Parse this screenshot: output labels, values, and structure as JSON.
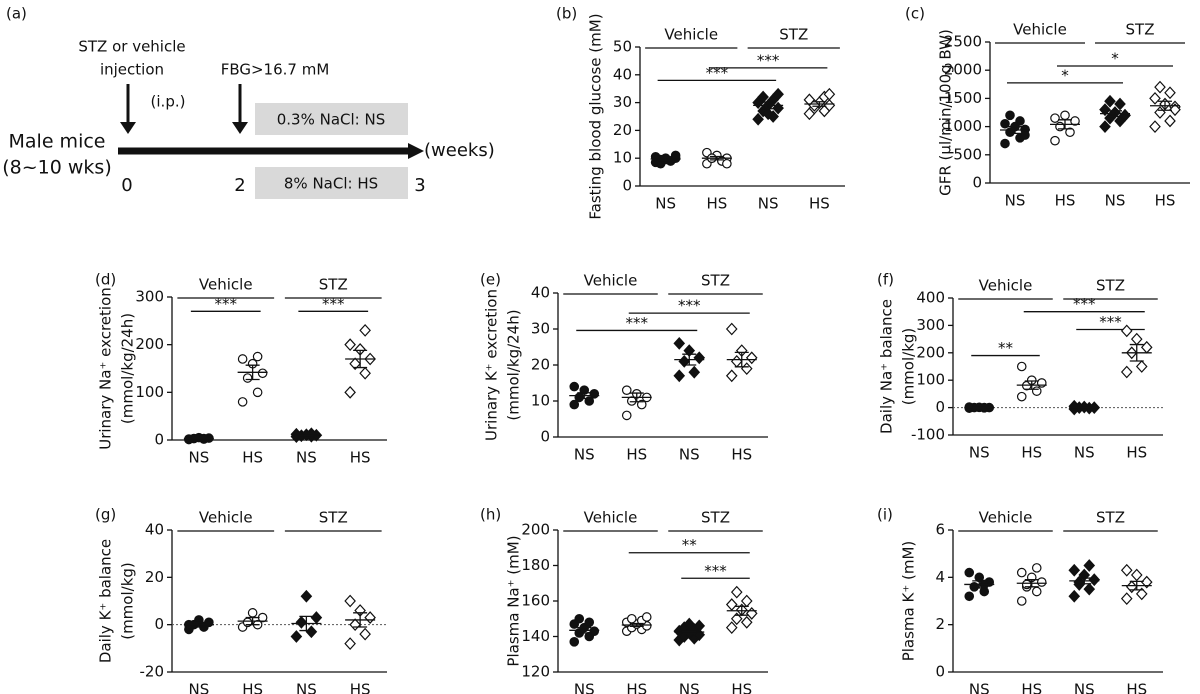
{
  "schematic": {
    "label": "(a)",
    "injection_1": "STZ or vehicle",
    "injection_2": "injection",
    "route": "(i.p.)",
    "fbg": "FBG>16.7 mM",
    "mice_1": "Male mice",
    "mice_2": "(8~10 wks)",
    "t0": "0",
    "t2": "2",
    "t3": "3",
    "unit": "(weeks)",
    "ns_box": "0.3% NaCl: NS",
    "hs_box": "8% NaCl: HS"
  },
  "chart_data": [
    {
      "type": "dot",
      "label": "(b)",
      "ylabel": [
        "Fasting blood glucose (mM)"
      ],
      "categories": [
        "NS",
        "HS",
        "NS",
        "HS"
      ],
      "groups": [
        "Vehicle",
        "STZ"
      ],
      "markers": [
        "filled-circle",
        "open-circle",
        "filled-diamond",
        "open-diamond"
      ],
      "ylim": [
        0,
        50
      ],
      "yticks": [
        0,
        10,
        20,
        30,
        40,
        50
      ],
      "points": [
        [
          8.5,
          9,
          9.5,
          10,
          10,
          10.5,
          9,
          8,
          11,
          9.5
        ],
        [
          8,
          9,
          10,
          10,
          11,
          12,
          9,
          10,
          8
        ],
        [
          24,
          25,
          27,
          28,
          29,
          30,
          31,
          32,
          33,
          26
        ],
        [
          26,
          27,
          28,
          29,
          30,
          31,
          32,
          29,
          33
        ]
      ],
      "means": [
        9.7,
        10,
        29,
        29.5
      ],
      "sems": [
        0.5,
        0.6,
        1.2,
        0.8
      ],
      "brackets": [
        {
          "from": 0,
          "to": 2,
          "label": "***"
        },
        {
          "from": 1,
          "to": 3,
          "label": "***"
        }
      ]
    },
    {
      "type": "dot",
      "label": "(c)",
      "ylabel": [
        "GFR (μl/min/100g BW)"
      ],
      "categories": [
        "NS",
        "HS",
        "NS",
        "HS"
      ],
      "groups": [
        "Vehicle",
        "STZ"
      ],
      "markers": [
        "filled-circle",
        "open-circle",
        "filled-diamond",
        "open-diamond"
      ],
      "ylim": [
        0,
        2500
      ],
      "yticks": [
        0,
        500,
        1000,
        1500,
        2000,
        2500
      ],
      "points": [
        [
          700,
          800,
          900,
          950,
          1000,
          1050,
          1100,
          1200,
          850
        ],
        [
          750,
          900,
          1000,
          1100,
          1200,
          1150
        ],
        [
          1000,
          1100,
          1150,
          1200,
          1250,
          1300,
          1400,
          1450,
          1200
        ],
        [
          1000,
          1100,
          1250,
          1350,
          1400,
          1500,
          1600,
          1700,
          1300
        ]
      ],
      "means": [
        940,
        1040,
        1230,
        1370
      ],
      "sems": [
        60,
        80,
        50,
        80
      ],
      "brackets": [
        {
          "from": 0,
          "to": 2,
          "label": "*"
        },
        {
          "from": 1,
          "to": 3,
          "label": "*"
        }
      ]
    },
    {
      "type": "dot",
      "label": "(d)",
      "ylabel": [
        "Urinary Na⁺ excretion",
        "(mmol/kg/24h)"
      ],
      "categories": [
        "NS",
        "HS",
        "NS",
        "HS"
      ],
      "groups": [
        "Vehicle",
        "STZ"
      ],
      "markers": [
        "filled-circle",
        "open-circle",
        "filled-diamond",
        "open-diamond"
      ],
      "ylim": [
        0,
        300
      ],
      "yticks": [
        0,
        100,
        200,
        300
      ],
      "points": [
        [
          1,
          2,
          3,
          4,
          5,
          2,
          3
        ],
        [
          80,
          100,
          130,
          140,
          160,
          170,
          175
        ],
        [
          7,
          8,
          9,
          10,
          11,
          12,
          13
        ],
        [
          100,
          140,
          160,
          170,
          190,
          200,
          230
        ]
      ],
      "means": [
        3,
        142,
        10,
        170
      ],
      "sems": [
        1,
        15,
        1,
        18
      ],
      "brackets": [
        {
          "from": 0,
          "to": 1,
          "label": "***"
        },
        {
          "from": 2,
          "to": 3,
          "label": "***"
        }
      ]
    },
    {
      "type": "dot",
      "label": "(e)",
      "ylabel": [
        "Urinary K⁺ excretion",
        "(mmol/kg/24h)"
      ],
      "categories": [
        "NS",
        "HS",
        "NS",
        "HS"
      ],
      "groups": [
        "Vehicle",
        "STZ"
      ],
      "markers": [
        "filled-circle",
        "open-circle",
        "filled-diamond",
        "open-diamond"
      ],
      "ylim": [
        0,
        40
      ],
      "yticks": [
        0,
        10,
        20,
        30,
        40
      ],
      "points": [
        [
          9,
          10,
          11,
          12,
          13,
          14
        ],
        [
          6,
          9,
          10,
          11,
          12,
          13
        ],
        [
          17,
          18,
          21,
          22,
          24,
          26
        ],
        [
          17,
          19,
          21,
          22,
          24,
          30
        ]
      ],
      "means": [
        11.5,
        11,
        21.5,
        21.5
      ],
      "sems": [
        0.8,
        1.2,
        1.5,
        2
      ],
      "brackets": [
        {
          "from": 0,
          "to": 2,
          "label": "***"
        },
        {
          "from": 1,
          "to": 3,
          "label": "***"
        }
      ]
    },
    {
      "type": "dot",
      "label": "(f)",
      "ylabel": [
        "Daily Na⁺ balance",
        "(mmol/kg)"
      ],
      "categories": [
        "NS",
        "HS",
        "NS",
        "HS"
      ],
      "groups": [
        "Vehicle",
        "STZ"
      ],
      "markers": [
        "filled-circle",
        "open-circle",
        "filled-diamond",
        "open-diamond"
      ],
      "ylim": [
        -100,
        400
      ],
      "yticks": [
        -100,
        0,
        100,
        200,
        300,
        400
      ],
      "zero_line": true,
      "points": [
        [
          -2,
          -1,
          0,
          0,
          1,
          2,
          0
        ],
        [
          40,
          60,
          80,
          90,
          100,
          150
        ],
        [
          -5,
          -2,
          0,
          0,
          2,
          5
        ],
        [
          130,
          150,
          200,
          220,
          250,
          280
        ]
      ],
      "means": [
        0,
        82,
        0,
        200
      ],
      "sems": [
        1,
        15,
        2,
        30
      ],
      "brackets": [
        {
          "from": 0,
          "to": 1,
          "label": "**"
        },
        {
          "from": 2,
          "to": 3,
          "label": "***"
        },
        {
          "from": 1,
          "to": 3,
          "label": "***"
        }
      ]
    },
    {
      "type": "dot",
      "label": "(g)",
      "ylabel": [
        "Daily K⁺ balance",
        "(mmol/kg)"
      ],
      "categories": [
        "NS",
        "HS",
        "NS",
        "HS"
      ],
      "groups": [
        "Vehicle",
        "STZ"
      ],
      "markers": [
        "filled-circle",
        "open-circle",
        "filled-diamond",
        "open-diamond"
      ],
      "ylim": [
        -20,
        40
      ],
      "yticks": [
        -20,
        0,
        20,
        40
      ],
      "zero_line": true,
      "points": [
        [
          -2,
          -1,
          0,
          1,
          2,
          0
        ],
        [
          -1,
          0,
          1,
          3,
          5
        ],
        [
          -5,
          -3,
          1,
          3,
          12
        ],
        [
          -8,
          -4,
          0,
          3,
          6,
          10
        ]
      ],
      "means": [
        0,
        1.5,
        0.5,
        2
      ],
      "sems": [
        1,
        1.5,
        3,
        3
      ],
      "brackets": []
    },
    {
      "type": "dot",
      "label": "(h)",
      "ylabel": [
        "Plasma Na⁺ (mM)"
      ],
      "categories": [
        "NS",
        "HS",
        "NS",
        "HS"
      ],
      "groups": [
        "Vehicle",
        "STZ"
      ],
      "markers": [
        "filled-circle",
        "open-circle",
        "filled-diamond",
        "open-diamond"
      ],
      "ylim": [
        120,
        200
      ],
      "yticks": [
        120,
        140,
        160,
        180,
        200
      ],
      "points": [
        [
          137,
          140,
          142,
          143,
          145,
          147,
          148,
          150
        ],
        [
          143,
          144,
          145,
          146,
          147,
          148,
          149,
          150,
          151
        ],
        [
          138,
          139,
          140,
          141,
          142,
          143,
          144,
          145,
          146,
          147
        ],
        [
          145,
          148,
          150,
          153,
          155,
          158,
          160,
          165
        ]
      ],
      "means": [
        143.5,
        146.5,
        142.5,
        154.5
      ],
      "sems": [
        1.5,
        0.8,
        0.7,
        2.5
      ],
      "brackets": [
        {
          "from": 1,
          "to": 3,
          "label": "**"
        },
        {
          "from": 2,
          "to": 3,
          "label": "***"
        }
      ]
    },
    {
      "type": "dot",
      "label": "(i)",
      "ylabel": [
        "Plasma K⁺ (mM)"
      ],
      "categories": [
        "NS",
        "HS",
        "NS",
        "HS"
      ],
      "groups": [
        "Vehicle",
        "STZ"
      ],
      "markers": [
        "filled-circle",
        "open-circle",
        "filled-diamond",
        "open-diamond"
      ],
      "ylim": [
        0,
        6
      ],
      "yticks": [
        0,
        2,
        4,
        6
      ],
      "points": [
        [
          3.2,
          3.4,
          3.6,
          3.8,
          4.0,
          4.2,
          3.7
        ],
        [
          3.0,
          3.4,
          3.6,
          3.8,
          4.0,
          4.2,
          4.4,
          3.7
        ],
        [
          3.2,
          3.5,
          3.7,
          3.9,
          4.1,
          4.3,
          4.5,
          3.8
        ],
        [
          3.1,
          3.3,
          3.6,
          3.8,
          4.1,
          4.3
        ]
      ],
      "means": [
        3.7,
        3.75,
        3.85,
        3.65
      ],
      "sems": [
        0.15,
        0.15,
        0.12,
        0.18
      ],
      "brackets": []
    }
  ]
}
